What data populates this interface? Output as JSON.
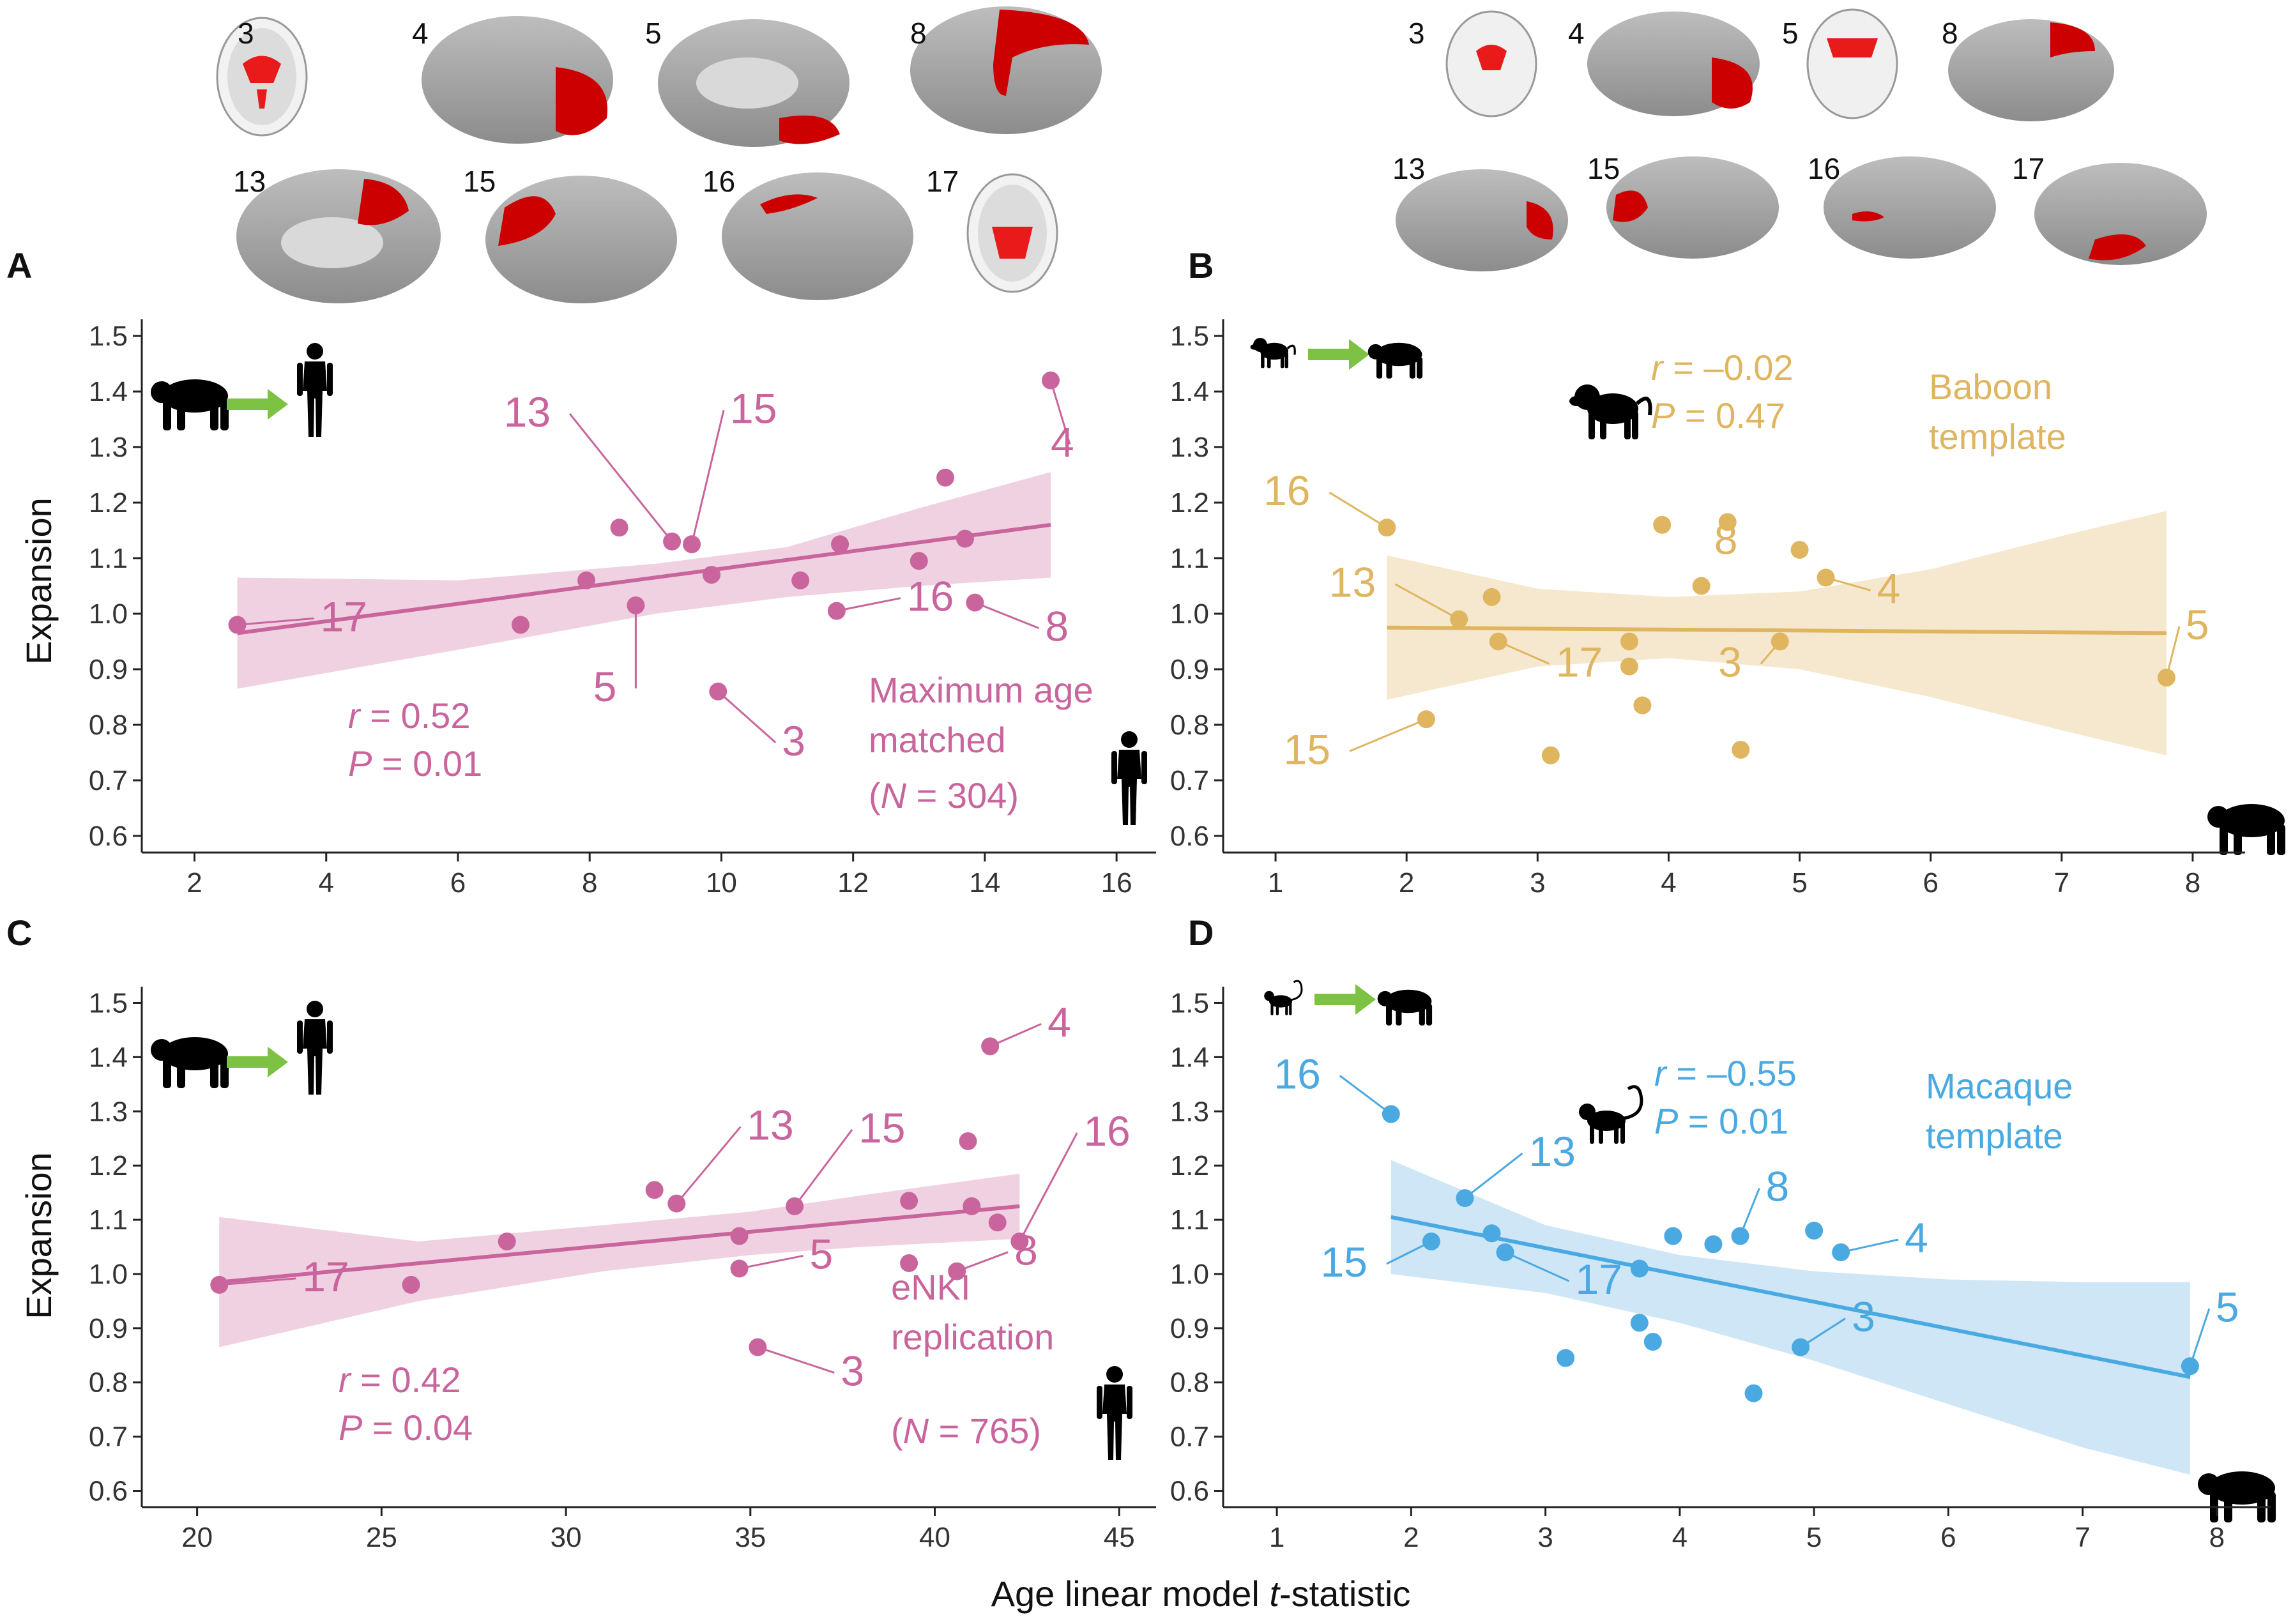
{
  "figure": {
    "xlabel_prefix": "Age linear model ",
    "xlabel_italic": "t",
    "xlabel_suffix": "-statistic",
    "ylabel": "Expansion"
  },
  "brain_labels": {
    "A": [
      "3",
      "4",
      "5",
      "8",
      "13",
      "15",
      "16",
      "17"
    ],
    "B": [
      "3",
      "4",
      "5",
      "8",
      "13",
      "15",
      "16",
      "17"
    ]
  },
  "colors": {
    "pink": "#c9659c",
    "pink_ribbon": "#ecc9dc",
    "gold": "#dfb55f",
    "gold_ribbon": "#f5e4c6",
    "blue": "#4aa9e1",
    "blue_ribbon": "#c7e2f4",
    "brain_highlight": "#cc0000",
    "arrow_green": "#7dc242"
  },
  "chart_data": [
    {
      "panel": "A",
      "type": "scatter",
      "xlim": [
        1.2,
        16.6
      ],
      "ylim": [
        0.57,
        1.53
      ],
      "xticks": [
        2,
        4,
        6,
        8,
        10,
        12,
        14,
        16
      ],
      "yticks": [
        0.6,
        0.7,
        0.8,
        0.9,
        1.0,
        1.1,
        1.2,
        1.3,
        1.4,
        1.5
      ],
      "ytick_labels": [
        "0.6",
        "0.7",
        "0.8",
        "0.9",
        "1.0",
        "1.1",
        "1.2",
        "1.3",
        "1.4",
        "1.5"
      ],
      "ylabel": "Expansion",
      "stat_r": "0.52",
      "stat_p": "0.01",
      "note_lines": [
        "Maximum age",
        "matched"
      ],
      "note_n": "304",
      "points": [
        {
          "x": 2.65,
          "y": 0.98,
          "label": "17"
        },
        {
          "x": 6.95,
          "y": 0.98
        },
        {
          "x": 7.95,
          "y": 1.06
        },
        {
          "x": 8.45,
          "y": 1.155
        },
        {
          "x": 8.7,
          "y": 1.015,
          "label": "5"
        },
        {
          "x": 9.25,
          "y": 1.13,
          "label": "13"
        },
        {
          "x": 9.55,
          "y": 1.125,
          "label": "15"
        },
        {
          "x": 9.85,
          "y": 1.07
        },
        {
          "x": 9.95,
          "y": 0.86,
          "label": "3"
        },
        {
          "x": 11.2,
          "y": 1.06
        },
        {
          "x": 11.75,
          "y": 1.005,
          "label": "16"
        },
        {
          "x": 11.8,
          "y": 1.125
        },
        {
          "x": 13.0,
          "y": 1.095
        },
        {
          "x": 13.4,
          "y": 1.245
        },
        {
          "x": 13.7,
          "y": 1.135
        },
        {
          "x": 13.85,
          "y": 1.02,
          "label": "8"
        },
        {
          "x": 15.0,
          "y": 1.42,
          "label": "4"
        }
      ],
      "fit": {
        "x": [
          2.65,
          15.0
        ],
        "y": [
          0.965,
          1.16
        ]
      },
      "ci": {
        "x": [
          2.65,
          6,
          9,
          11,
          13,
          15.0
        ],
        "lower": [
          0.865,
          0.935,
          1.0,
          1.03,
          1.05,
          1.065
        ],
        "upper": [
          1.065,
          1.06,
          1.09,
          1.12,
          1.19,
          1.255
        ]
      }
    },
    {
      "panel": "B",
      "type": "scatter",
      "xlim": [
        0.6,
        8.4
      ],
      "ylim": [
        0.57,
        1.53
      ],
      "xticks": [
        1,
        2,
        3,
        4,
        5,
        6,
        7,
        8
      ],
      "yticks": [
        0.6,
        0.7,
        0.8,
        0.9,
        1.0,
        1.1,
        1.2,
        1.3,
        1.4,
        1.5
      ],
      "ytick_labels": [
        "0.6",
        "0.7",
        "0.8",
        "0.9",
        "1.0",
        "1.1",
        "1.2",
        "1.3",
        "1.4",
        "1.5"
      ],
      "stat_r": "–0.02",
      "stat_p": "0.47",
      "note_lines": [
        "Baboon",
        "template"
      ],
      "points": [
        {
          "x": 1.85,
          "y": 1.155,
          "label": "16"
        },
        {
          "x": 2.15,
          "y": 0.81,
          "label": "15"
        },
        {
          "x": 2.4,
          "y": 0.99,
          "label": "13"
        },
        {
          "x": 2.65,
          "y": 1.03
        },
        {
          "x": 2.7,
          "y": 0.95,
          "label": "17"
        },
        {
          "x": 3.1,
          "y": 0.745
        },
        {
          "x": 3.7,
          "y": 0.95
        },
        {
          "x": 3.7,
          "y": 0.905
        },
        {
          "x": 3.8,
          "y": 0.835
        },
        {
          "x": 3.95,
          "y": 1.16
        },
        {
          "x": 4.25,
          "y": 1.05,
          "label": "8"
        },
        {
          "x": 4.45,
          "y": 1.165
        },
        {
          "x": 4.55,
          "y": 0.755
        },
        {
          "x": 4.85,
          "y": 0.95,
          "label": "3"
        },
        {
          "x": 5.0,
          "y": 1.115
        },
        {
          "x": 5.2,
          "y": 1.065,
          "label": "4"
        },
        {
          "x": 7.8,
          "y": 0.885,
          "label": "5"
        }
      ],
      "fit": {
        "x": [
          1.85,
          7.8
        ],
        "y": [
          0.975,
          0.965
        ]
      },
      "ci": {
        "x": [
          1.85,
          3,
          4,
          5,
          6,
          7,
          7.8
        ],
        "lower": [
          0.845,
          0.905,
          0.92,
          0.9,
          0.85,
          0.79,
          0.745
        ],
        "upper": [
          1.105,
          1.045,
          1.03,
          1.04,
          1.08,
          1.14,
          1.185
        ]
      }
    },
    {
      "panel": "C",
      "type": "scatter",
      "xlim": [
        18.5,
        46.0
      ],
      "ylim": [
        0.57,
        1.53
      ],
      "xticks": [
        20,
        25,
        30,
        35,
        40,
        45
      ],
      "yticks": [
        0.6,
        0.7,
        0.8,
        0.9,
        1.0,
        1.1,
        1.2,
        1.3,
        1.4,
        1.5
      ],
      "ytick_labels": [
        "0.6",
        "0.7",
        "0.8",
        "0.9",
        "1.0",
        "1.1",
        "1.2",
        "1.3",
        "1.4",
        "1.5"
      ],
      "ylabel": "Expansion",
      "stat_r": "0.42",
      "stat_p": "0.04",
      "note_lines": [
        "eNKI",
        "replication"
      ],
      "note_n": "765",
      "points": [
        {
          "x": 20.6,
          "y": 0.98,
          "label": "17"
        },
        {
          "x": 25.8,
          "y": 0.98
        },
        {
          "x": 28.4,
          "y": 1.06
        },
        {
          "x": 32.4,
          "y": 1.155
        },
        {
          "x": 33.0,
          "y": 1.13,
          "label": "13"
        },
        {
          "x": 34.7,
          "y": 1.07
        },
        {
          "x": 34.7,
          "y": 1.01,
          "label": "5"
        },
        {
          "x": 35.2,
          "y": 0.865,
          "label": "3"
        },
        {
          "x": 36.2,
          "y": 1.125,
          "label": "15"
        },
        {
          "x": 39.3,
          "y": 1.135
        },
        {
          "x": 39.3,
          "y": 1.02
        },
        {
          "x": 40.6,
          "y": 1.005,
          "label": "8"
        },
        {
          "x": 40.9,
          "y": 1.245
        },
        {
          "x": 41.0,
          "y": 1.125
        },
        {
          "x": 41.5,
          "y": 1.42,
          "label": "4"
        },
        {
          "x": 41.7,
          "y": 1.095
        },
        {
          "x": 42.3,
          "y": 1.06,
          "label": "16"
        }
      ],
      "fit": {
        "x": [
          20.6,
          42.3
        ],
        "y": [
          0.985,
          1.125
        ]
      },
      "ci": {
        "x": [
          20.6,
          26,
          31,
          35,
          38,
          42.3
        ],
        "lower": [
          0.865,
          0.95,
          1.005,
          1.035,
          1.05,
          1.065
        ],
        "upper": [
          1.105,
          1.06,
          1.09,
          1.115,
          1.145,
          1.185
        ]
      }
    },
    {
      "panel": "D",
      "type": "scatter",
      "xlim": [
        0.6,
        8.4
      ],
      "ylim": [
        0.57,
        1.53
      ],
      "xticks": [
        1,
        2,
        3,
        4,
        5,
        6,
        7,
        8
      ],
      "yticks": [
        0.6,
        0.7,
        0.8,
        0.9,
        1.0,
        1.1,
        1.2,
        1.3,
        1.4,
        1.5
      ],
      "ytick_labels": [
        "0.6",
        "0.7",
        "0.8",
        "0.9",
        "1.0",
        "1.1",
        "1.2",
        "1.3",
        "1.4",
        "1.5"
      ],
      "stat_r": "–0.55",
      "stat_p": "0.01",
      "note_lines": [
        "Macaque",
        "template"
      ],
      "points": [
        {
          "x": 1.85,
          "y": 1.295,
          "label": "16"
        },
        {
          "x": 2.15,
          "y": 1.06,
          "label": "15"
        },
        {
          "x": 2.4,
          "y": 1.14,
          "label": "13"
        },
        {
          "x": 2.6,
          "y": 1.075
        },
        {
          "x": 2.7,
          "y": 1.04,
          "label": "17"
        },
        {
          "x": 3.15,
          "y": 0.845
        },
        {
          "x": 3.7,
          "y": 1.01
        },
        {
          "x": 3.7,
          "y": 0.91
        },
        {
          "x": 3.8,
          "y": 0.875
        },
        {
          "x": 3.95,
          "y": 1.07
        },
        {
          "x": 4.25,
          "y": 1.055
        },
        {
          "x": 4.45,
          "y": 1.07,
          "label": "8"
        },
        {
          "x": 4.55,
          "y": 0.78
        },
        {
          "x": 4.9,
          "y": 0.865,
          "label": "3"
        },
        {
          "x": 5.0,
          "y": 1.08
        },
        {
          "x": 5.2,
          "y": 1.04,
          "label": "4"
        },
        {
          "x": 7.8,
          "y": 0.83,
          "label": "5"
        }
      ],
      "fit": {
        "x": [
          1.85,
          7.8
        ],
        "y": [
          1.105,
          0.81
        ]
      },
      "ci": {
        "x": [
          1.85,
          3,
          4,
          5,
          6,
          7,
          7.8
        ],
        "lower": [
          1.0,
          0.965,
          0.91,
          0.84,
          0.76,
          0.68,
          0.63
        ],
        "upper": [
          1.21,
          1.09,
          1.035,
          1.005,
          0.99,
          0.985,
          0.985
        ]
      }
    }
  ]
}
